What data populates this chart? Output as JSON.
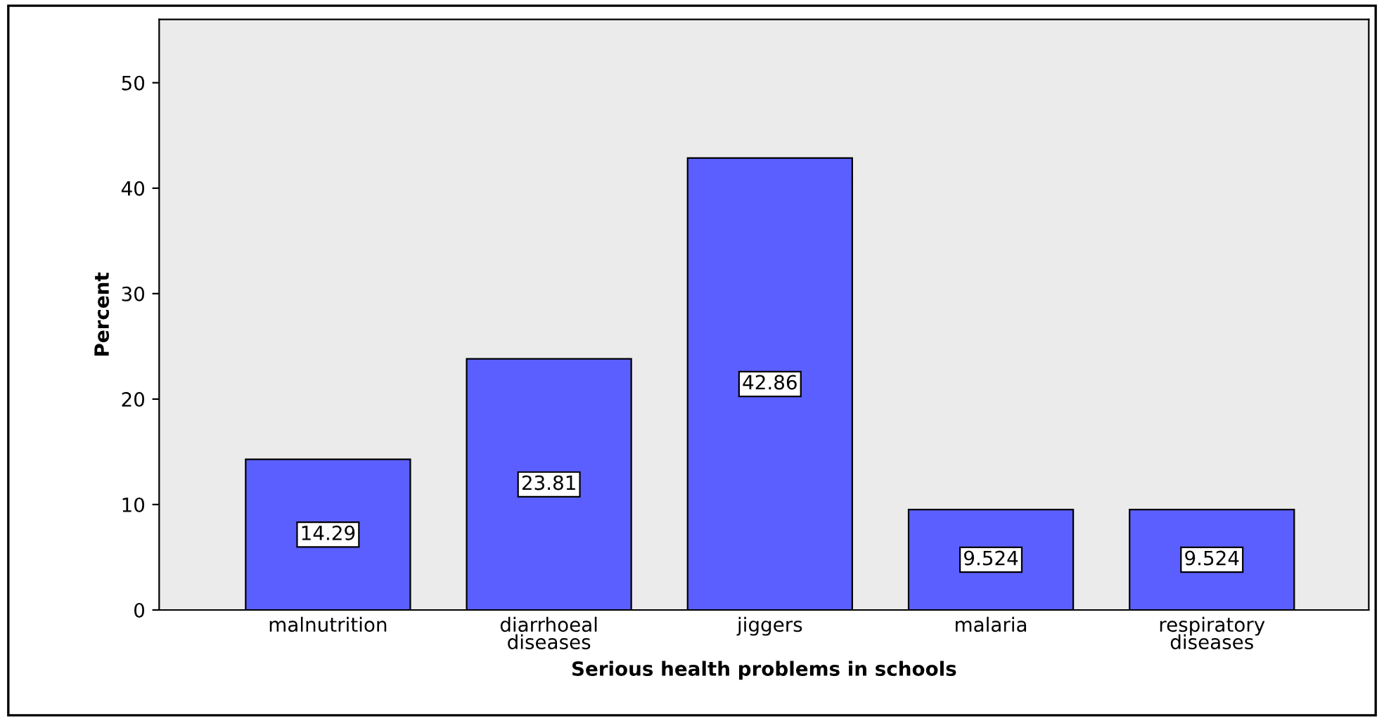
{
  "chart_data": {
    "type": "bar",
    "xlabel": "Serious health problems in schools",
    "ylabel": "Percent",
    "categories": [
      "malnutrition",
      "diarrhoeal\ndiseases",
      "jiggers",
      "malaria",
      "respiratory\ndiseases"
    ],
    "values": [
      14.29,
      23.81,
      42.86,
      9.524,
      9.524
    ],
    "color": "#5b5fff",
    "ylim": [
      0,
      56
    ],
    "yticks": [
      0,
      10,
      20,
      30,
      40,
      50
    ],
    "grid": false,
    "data_labels": true
  }
}
